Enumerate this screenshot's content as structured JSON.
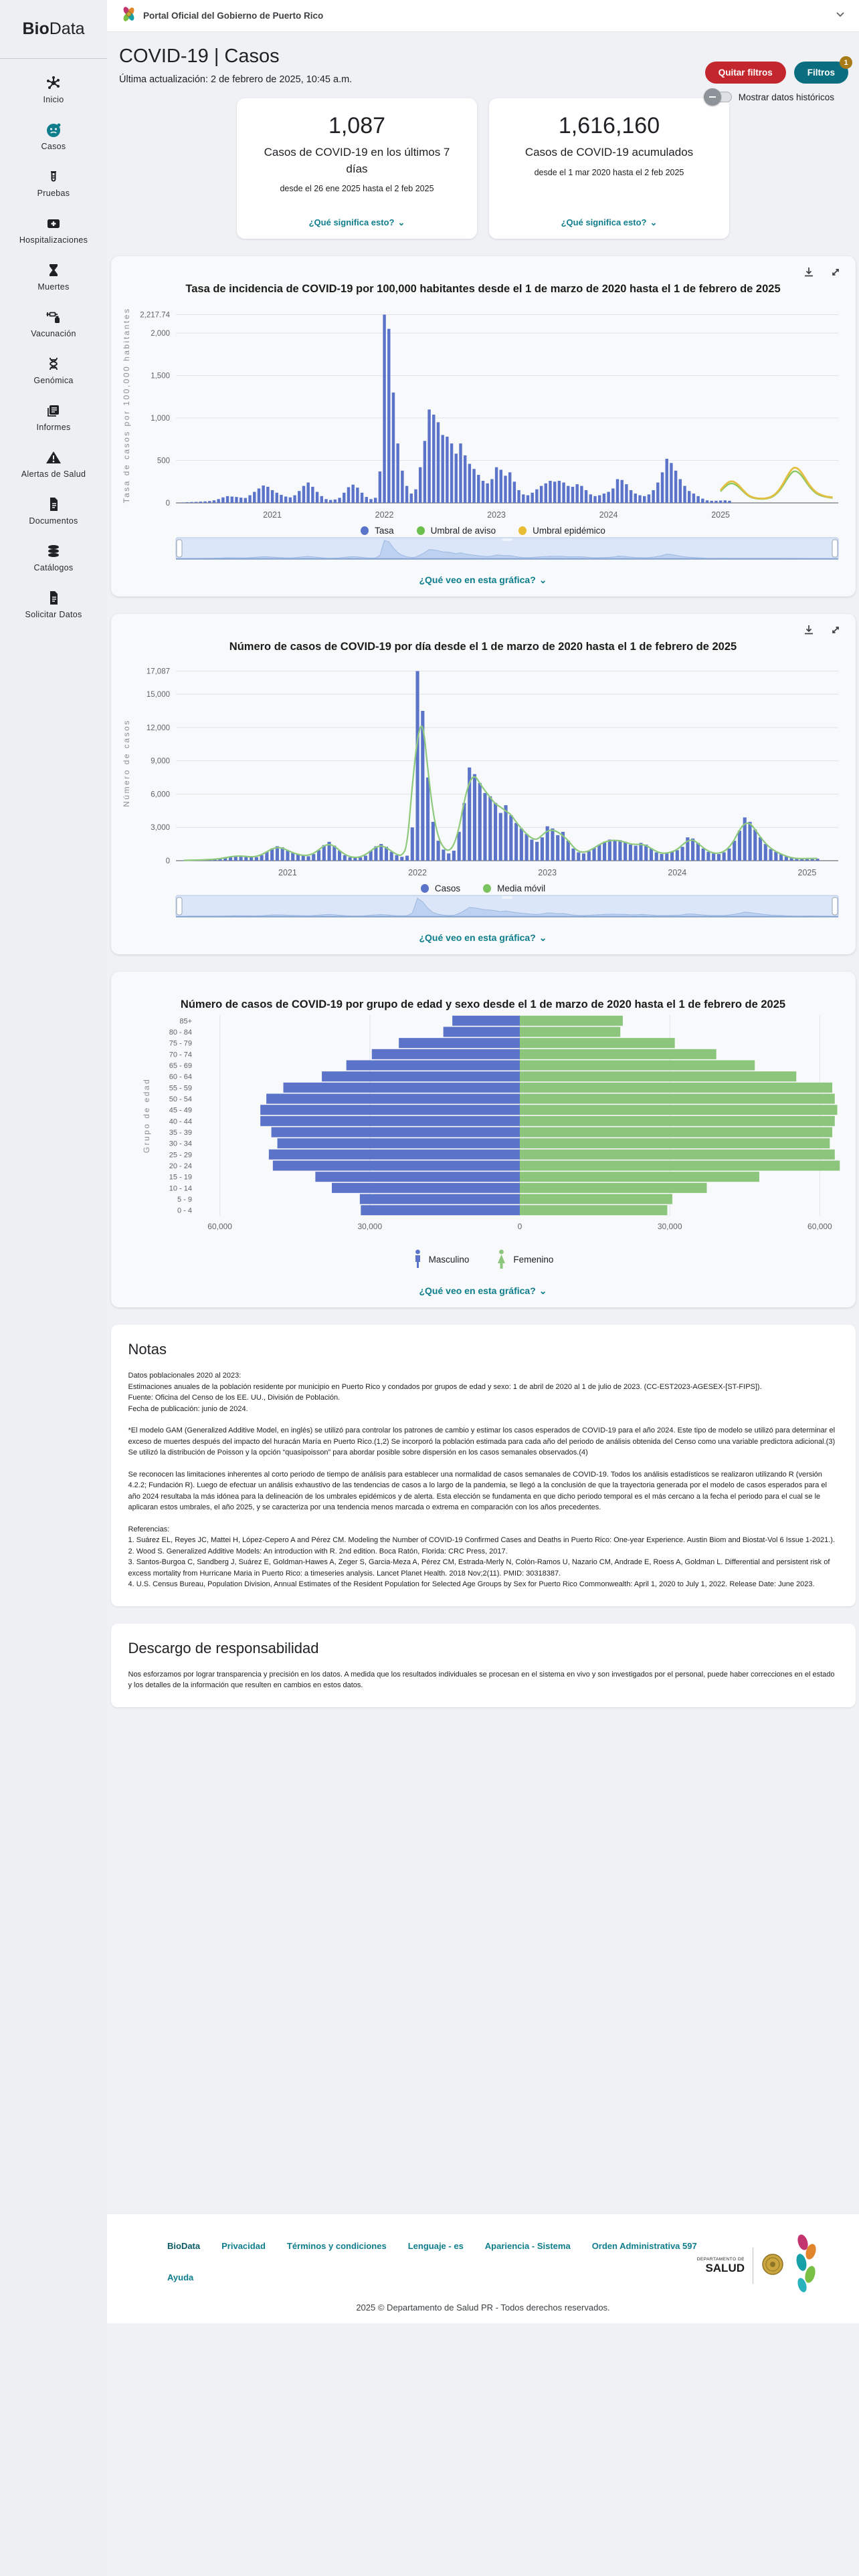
{
  "topbar": {
    "title": "Portal Oficial del Gobierno de Puerto Rico"
  },
  "sidebar": {
    "brand_bold": "Bio",
    "brand_rest": "Data",
    "items": [
      {
        "label": "Inicio",
        "icon": "virus",
        "active": false
      },
      {
        "label": "Casos",
        "icon": "face",
        "active": true
      },
      {
        "label": "Pruebas",
        "icon": "tube",
        "active": false
      },
      {
        "label": "Hospitalizaciones",
        "icon": "hospital",
        "active": false
      },
      {
        "label": "Muertes",
        "icon": "hourglass",
        "active": false
      },
      {
        "label": "Vacunación",
        "icon": "syringe",
        "active": false
      },
      {
        "label": "Genómica",
        "icon": "dna",
        "active": false
      },
      {
        "label": "Informes",
        "icon": "report",
        "active": false
      },
      {
        "label": "Alertas de Salud",
        "icon": "alert",
        "active": false
      },
      {
        "label": "Documentos",
        "icon": "doc",
        "active": false
      },
      {
        "label": "Catálogos",
        "icon": "db",
        "active": false
      },
      {
        "label": "Solicitar Datos",
        "icon": "doc",
        "active": false
      }
    ],
    "active_color": "#0e7d8c",
    "inactive_color": "#202124"
  },
  "header": {
    "title": "COVID-19 | Casos",
    "updated": "Última actualización: 2 de febrero de 2025, 10:45 a.m.",
    "remove_filters_label": "Quitar filtros",
    "filters_label": "Filtros",
    "filters_badge": "1",
    "toggle_label": "Mostrar datos históricos"
  },
  "stat_cards": [
    {
      "value": "1,087",
      "label": "Casos de COVID-19 en los últimos 7 días",
      "range": "desde el 26 ene 2025 hasta el 2 feb 2025",
      "link": "¿Qué significa esto?"
    },
    {
      "value": "1,616,160",
      "label": "Casos de COVID-19 acumulados",
      "range": "desde el 1 mar 2020 hasta el 2 feb 2025",
      "link": "¿Qué significa esto?"
    }
  ],
  "chart_data": [
    {
      "type": "bar",
      "title": "Tasa de incidencia de COVID-19 por 100,000 habitantes desde el 1 de marzo de 2020 hasta el 1 de febrero de 2025",
      "ylabel": "Tasa de casos por 100,000 habitantes",
      "ylim": [
        0,
        2300
      ],
      "yticks": [
        0,
        500,
        1000,
        1500,
        2000,
        2217.74
      ],
      "ytick_labels": [
        "0",
        "500",
        "1,000",
        "1,500",
        "2,000",
        "2,217.74"
      ],
      "xlim": [
        2020.14,
        2026.05
      ],
      "xticks": [
        2021,
        2022,
        2023,
        2024,
        2025
      ],
      "xtick_labels": [
        "2021",
        "2022",
        "2023",
        "2024",
        "2025"
      ],
      "x_start": 2020.2,
      "x_step": 0.04,
      "values": [
        5,
        8,
        10,
        12,
        15,
        18,
        22,
        30,
        45,
        65,
        80,
        75,
        70,
        62,
        58,
        90,
        130,
        170,
        205,
        190,
        150,
        120,
        95,
        75,
        65,
        90,
        140,
        200,
        240,
        190,
        130,
        80,
        45,
        35,
        40,
        60,
        120,
        185,
        215,
        180,
        120,
        70,
        45,
        60,
        370,
        2217.74,
        2050,
        1300,
        700,
        380,
        200,
        110,
        160,
        420,
        730,
        1100,
        1040,
        950,
        800,
        780,
        700,
        580,
        700,
        560,
        460,
        400,
        330,
        260,
        230,
        280,
        420,
        390,
        320,
        360,
        250,
        150,
        100,
        90,
        120,
        160,
        200,
        230,
        260,
        250,
        260,
        240,
        200,
        190,
        220,
        200,
        150,
        100,
        80,
        90,
        110,
        130,
        170,
        280,
        270,
        220,
        150,
        110,
        90,
        80,
        100,
        150,
        240,
        360,
        520,
        470,
        380,
        280,
        200,
        140,
        110,
        80,
        50,
        30,
        25,
        25,
        28,
        30,
        25
      ],
      "umbral_aviso": {
        "x_start": 2025.0,
        "x_step": 0.05,
        "values": [
          135,
          207,
          236,
          202,
          135,
          76,
          52,
          45,
          47,
          61,
          104,
          184,
          297,
          382,
          360,
          270,
          176,
          112,
          81,
          65,
          58
        ]
      },
      "umbral_epidemico": {
        "x_start": 2025.0,
        "x_step": 0.05,
        "values": [
          150,
          230,
          262,
          225,
          150,
          85,
          58,
          50,
          52,
          68,
          115,
          205,
          330,
          425,
          400,
          300,
          195,
          125,
          90,
          72,
          65
        ]
      },
      "legend": [
        {
          "label": "Tasa",
          "color": "#5b74c9"
        },
        {
          "label": "Umbral de aviso",
          "color": "#6dbf4d"
        },
        {
          "label": "Umbral epidémico",
          "color": "#e8bd35"
        }
      ],
      "colors": {
        "bar": "#5b74c9",
        "aviso": "#86c75f",
        "epidemico": "#e3bf41"
      },
      "show_moving_average": false,
      "link": "¿Qué veo en esta gráfica?"
    },
    {
      "type": "bar",
      "title": "Número de casos de COVID-19 por día desde el 1 de marzo de 2020 hasta el 1 de febrero de 2025",
      "ylabel": "Número de casos",
      "ylim": [
        0,
        17600
      ],
      "yticks": [
        0,
        3000,
        6000,
        9000,
        12000,
        15000,
        17087
      ],
      "ytick_labels": [
        "0",
        "3,000",
        "6,000",
        "9,000",
        "12,000",
        "15,000",
        "17,087"
      ],
      "xlim": [
        2020.14,
        2025.24
      ],
      "xticks": [
        2021,
        2022,
        2023,
        2024,
        2025
      ],
      "xtick_labels": [
        "2021",
        "2022",
        "2023",
        "2024",
        "2025"
      ],
      "x_start": 2020.2,
      "x_step": 0.04,
      "values": [
        30,
        40,
        50,
        60,
        80,
        100,
        130,
        180,
        260,
        350,
        450,
        420,
        380,
        340,
        320,
        500,
        800,
        1100,
        1300,
        1200,
        900,
        700,
        550,
        450,
        400,
        600,
        950,
        1400,
        1700,
        1350,
        900,
        500,
        300,
        250,
        300,
        450,
        900,
        1300,
        1500,
        1250,
        800,
        500,
        350,
        450,
        3000,
        17087,
        13500,
        7500,
        3500,
        1800,
        1000,
        650,
        900,
        2600,
        5200,
        8400,
        7800,
        7000,
        6100,
        5800,
        5200,
        4300,
        5000,
        4100,
        3400,
        2900,
        2400,
        1900,
        1700,
        2100,
        3100,
        2900,
        2300,
        2600,
        1800,
        1100,
        750,
        650,
        850,
        1150,
        1450,
        1700,
        1900,
        1800,
        1850,
        1700,
        1450,
        1350,
        1600,
        1450,
        1100,
        750,
        600,
        650,
        800,
        950,
        1250,
        2100,
        2000,
        1600,
        1100,
        800,
        650,
        600,
        750,
        1100,
        1800,
        2700,
        3900,
        3500,
        2800,
        2100,
        1500,
        1050,
        800,
        600,
        380,
        230,
        180,
        180,
        200,
        220,
        180
      ],
      "legend": [
        {
          "label": "Casos",
          "color": "#5b74c9"
        },
        {
          "label": "Media móvil",
          "color": "#7cc462"
        }
      ],
      "colors": {
        "bar": "#5b74c9",
        "line": "#8ec97d"
      },
      "show_moving_average": true,
      "link": "¿Qué veo en esta gráfica?"
    },
    {
      "type": "pyramid",
      "title": "Número de casos de COVID-19 por grupo de edad y sexo desde el 1 de marzo de 2020 hasta el 1 de febrero de 2025",
      "ylabel": "Grupo de edad",
      "age_groups": [
        "85+",
        "80 - 84",
        "75 - 79",
        "70 - 74",
        "65 - 69",
        "60 - 64",
        "55 - 59",
        "50 - 54",
        "45 - 49",
        "40 - 44",
        "35 - 39",
        "30 - 34",
        "25 - 29",
        "20 - 24",
        "15 - 19",
        "10 - 14",
        "5 - 9",
        "0 - 4"
      ],
      "series": [
        {
          "name": "Masculino",
          "values": [
            13500,
            15300,
            24200,
            29600,
            34700,
            39600,
            47300,
            50700,
            51900,
            51900,
            49700,
            48500,
            50200,
            49400,
            40900,
            37600,
            32000,
            31800
          ]
        },
        {
          "name": "Femenino",
          "values": [
            20600,
            20100,
            31000,
            39300,
            47000,
            55300,
            62500,
            63000,
            63500,
            63000,
            62500,
            62000,
            63000,
            64000,
            47900,
            37400,
            30500,
            29500
          ]
        }
      ],
      "xlim": 64500,
      "xticks": [
        -60000,
        -30000,
        0,
        30000,
        60000
      ],
      "xtick_labels": [
        "60,000",
        "30,000",
        "0",
        "30,000",
        "60,000"
      ],
      "legend": [
        {
          "label": "Masculino",
          "color": "#5b74c9"
        },
        {
          "label": "Femenino",
          "color": "#8cc57c"
        }
      ],
      "colors": {
        "male": "#5b74c9",
        "female": "#8cc57c"
      },
      "link": "¿Qué veo en esta gráfica?"
    }
  ],
  "notes": {
    "title": "Notas",
    "lines1": [
      "Datos poblacionales 2020 al 2023:",
      "Estimaciones anuales de la población residente por municipio en Puerto Rico y condados por grupos de edad y sexo: 1 de abril de 2020 al 1 de julio de 2023. (CC-EST2023-AGESEX-[ST-FIPS]).",
      "Fuente: Oficina del Censo de los EE. UU., División de Población.",
      "Fecha de publicación: junio de 2024."
    ],
    "para2": "*El modelo GAM (Generalized Additive Model, en inglés) se utilizó para controlar los patrones de cambio y estimar los casos esperados de COVID-19 para el año 2024. Este tipo de modelo se utilizó para determinar el exceso de muertes después del impacto del huracán María en Puerto Rico.(1,2) Se incorporó la población estimada para cada año del periodo de análisis obtenida del Censo como una variable predictora adicional.(3) Se utilizó la distribución de Poisson y la opción “quasipoisson” para abordar posible sobre dispersión en los casos semanales observados.(4)",
    "para3": "Se reconocen las limitaciones inherentes al corto periodo de tiempo de análisis para establecer una normalidad de casos semanales de COVID-19. Todos los análisis estadísticos se realizaron utilizando R (versión 4.2.2; Fundación R). Luego de efectuar un análisis exhaustivo de las tendencias de casos a lo largo de la pandemia, se llegó a la conclusión de que la trayectoria generada por el modelo de casos esperados para el año 2024 resultaba la más idónea para la delineación de los umbrales epidémicos y de alerta. Esta elección se fundamenta en que dicho periodo temporal es el más cercano a la fecha el periodo para el cual se le aplicaran estos umbrales, el año 2025, y se caracteriza por una tendencia menos marcada o extrema en comparación con los años precedentes.",
    "refs": [
      "Referencias:",
      "1. Suárez EL, Reyes JC, Mattei H, López-Cepero A and Pérez CM. Modeling the Number of COVID-19 Confirmed Cases and Deaths in Puerto Rico: One-year Experience. Austin Biom and Biostat-Vol 6 Issue 1-2021.).",
      "2. Wood S. Generalized Additive Models: An introduction with R. 2nd edition. Boca Ratón, Florida: CRC Press, 2017.",
      "3. Santos-Burgoa C, Sandberg J, Suárez E, Goldman-Hawes A, Zeger S, Garcia-Meza A, Pérez CM, Estrada-Merly N, Colón-Ramos U, Nazario CM, Andrade E, Roess A, Goldman L. Differential and persistent risk of excess mortality from Hurricane Maria in Puerto Rico: a timeseries analysis. Lancet Planet Health. 2018 Nov;2(11). PMID: 30318387.",
      "4. U.S. Census Bureau, Population Division, Annual Estimates of the Resident Population for Selected Age Groups by Sex for Puerto Rico Commonwealth: April 1, 2020 to July 1, 2022. Release Date: June 2023."
    ]
  },
  "disclaimer": {
    "title": "Descargo de responsabilidad",
    "text": "Nos esforzamos por lograr transparencia y precisión en los datos. A medida que los resultados individuales se procesan en el sistema en vivo y son investigados por el personal, puede haber correcciones en el estado y los detalles de la información que resulten en cambios en estos datos."
  },
  "footer": {
    "brand": "BioData",
    "links": [
      "Privacidad",
      "Términos y condiciones",
      "Lenguaje - es",
      "Apariencia - Sistema",
      "Orden Administrativa 597"
    ],
    "help_link": "Ayuda",
    "dept_small": "DEPARTAMENTO DE",
    "dept_big": "SALUD",
    "copyright": "2025 © Departamento de Salud PR - Todos derechos reservados."
  }
}
